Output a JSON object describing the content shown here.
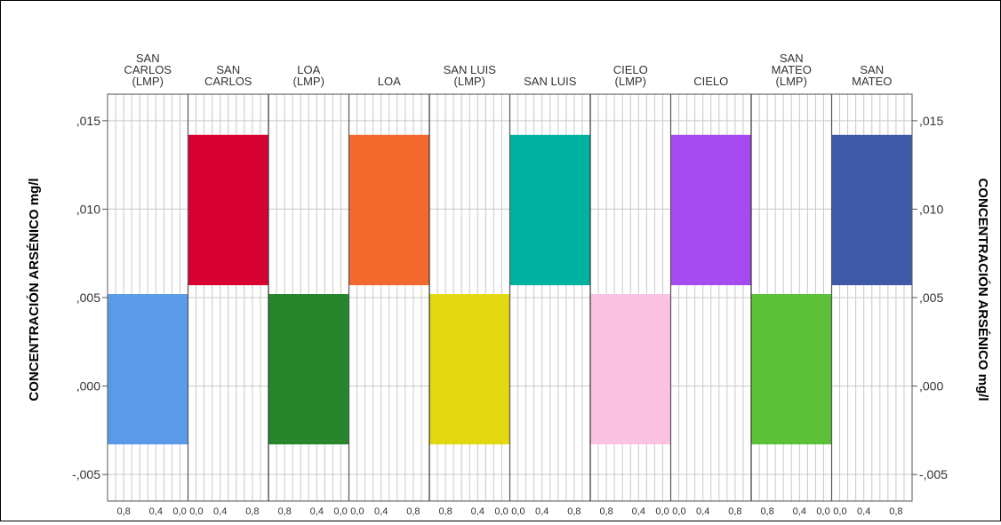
{
  "chart_data": {
    "type": "bar",
    "orientation": "population-pyramid",
    "ylabel_left": "CONCENTRACIÓN ARSÉNICO mg/l",
    "ylabel_right": "CONCENTRACIÓN ARSÉNICO mg/l",
    "ylim": [
      -0.0065,
      0.0165
    ],
    "y_ticks": [
      {
        "value": 0.015,
        "label": ",015"
      },
      {
        "value": 0.01,
        "label": ",010"
      },
      {
        "value": 0.005,
        "label": ",005"
      },
      {
        "value": 0.0,
        "label": ",000"
      },
      {
        "value": -0.005,
        "label": "-,005"
      }
    ],
    "x_ticks_left": [
      "0,8",
      "0,4",
      "0,0"
    ],
    "x_ticks_right": [
      "0,0",
      "0,4",
      "0,8"
    ],
    "panels": [
      {
        "title": "SAN\nCARLOS\n(LMP)",
        "side": "left",
        "y_from": -0.0033,
        "y_to": 0.0052,
        "x_value": 1.0,
        "color": "#5b9ae8"
      },
      {
        "title": "SAN\nCARLOS",
        "side": "right",
        "y_from": 0.0057,
        "y_to": 0.0142,
        "x_value": 1.0,
        "color": "#d60033"
      },
      {
        "title": "LOA\n(LMP)",
        "side": "left",
        "y_from": -0.0033,
        "y_to": 0.0052,
        "x_value": 1.0,
        "color": "#27862c"
      },
      {
        "title": "LOA",
        "side": "right",
        "y_from": 0.0057,
        "y_to": 0.0142,
        "x_value": 1.0,
        "color": "#f4692e"
      },
      {
        "title": "SAN LUIS\n(LMP)",
        "side": "left",
        "y_from": -0.0033,
        "y_to": 0.0052,
        "x_value": 1.0,
        "color": "#e2d913"
      },
      {
        "title": "SAN LUIS",
        "side": "right",
        "y_from": 0.0057,
        "y_to": 0.0142,
        "x_value": 1.0,
        "color": "#00b3a0"
      },
      {
        "title": "CIELO\n(LMP)",
        "side": "left",
        "y_from": -0.0033,
        "y_to": 0.0052,
        "x_value": 1.0,
        "color": "#fcc2e2"
      },
      {
        "title": "CIELO",
        "side": "right",
        "y_from": 0.0057,
        "y_to": 0.0142,
        "x_value": 1.0,
        "color": "#a64af2"
      },
      {
        "title": "SAN\nMATEO\n(LMP)",
        "side": "left",
        "y_from": -0.0033,
        "y_to": 0.0052,
        "x_value": 1.0,
        "color": "#5cc138"
      },
      {
        "title": "SAN\nMATEO",
        "side": "right",
        "y_from": 0.0057,
        "y_to": 0.0142,
        "x_value": 1.0,
        "color": "#3d59a8"
      }
    ],
    "grid": true
  }
}
